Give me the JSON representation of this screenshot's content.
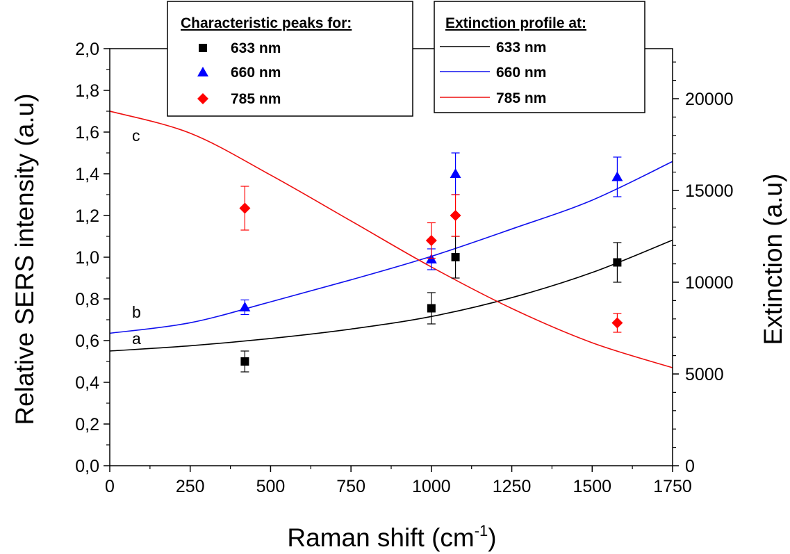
{
  "chart_data": {
    "type": "scatter",
    "xlabel_main": "Raman shift (cm",
    "xlabel_sup": "-1",
    "xlabel_close": ")",
    "ylabel": "Relative SERS intensity (a.u)",
    "y2label": "Extinction (a.u)",
    "xlim": [
      0,
      1750
    ],
    "ylim": [
      0,
      2.0
    ],
    "y2lim": [
      0,
      22727
    ],
    "x_ticks": [
      "0",
      "250",
      "500",
      "750",
      "1000",
      "1250",
      "1500",
      "1750"
    ],
    "y_ticks": [
      "0,0",
      "0,2",
      "0,4",
      "0,6",
      "0,8",
      "1,0",
      "1,2",
      "1,4",
      "1,6",
      "1,8",
      "2,0"
    ],
    "y2_ticks": [
      "0",
      "5000",
      "10000",
      "15000",
      "20000"
    ],
    "grid": false,
    "curve_letters": [
      "c",
      "b",
      "a"
    ],
    "legend_peaks": {
      "heading": "Characteristic peaks for:",
      "items": [
        "633 nm",
        "660 nm",
        "785 nm"
      ]
    },
    "legend_profile": {
      "heading": "Extinction profile at:",
      "items": [
        "633 nm",
        "660 nm",
        "785 nm"
      ]
    },
    "series": [
      {
        "name": "633 nm",
        "marker": "square",
        "color": "#000000",
        "x": [
          420,
          1000,
          1075,
          1578
        ],
        "y": [
          0.5,
          0.755,
          1.0,
          0.975
        ],
        "err": [
          0.05,
          0.075,
          0.1,
          0.095
        ]
      },
      {
        "name": "660 nm",
        "marker": "triangle",
        "color": "#0000ff",
        "x": [
          420,
          1000,
          1075,
          1578
        ],
        "y": [
          0.76,
          0.99,
          1.4,
          1.385
        ],
        "err": [
          0.035,
          0.05,
          0.1,
          0.095
        ]
      },
      {
        "name": "785 nm",
        "marker": "diamond",
        "color": "#ff0000",
        "x": [
          420,
          1000,
          1075,
          1578
        ],
        "y": [
          1.235,
          1.08,
          1.2,
          0.685
        ],
        "err": [
          0.105,
          0.085,
          0.1,
          0.045
        ]
      }
    ],
    "extinction_curves": [
      {
        "name": "633 nm",
        "color": "#000000",
        "x": [
          0,
          250,
          500,
          750,
          1000,
          1250,
          1500,
          1750
        ],
        "y": [
          6250,
          6535,
          6934,
          7447,
          8132,
          9159,
          10528,
          12297
        ]
      },
      {
        "name": "660 nm",
        "color": "#1010ee",
        "x": [
          0,
          250,
          500,
          750,
          1000,
          1250,
          1500,
          1750
        ],
        "y": [
          7220,
          7790,
          8930,
          10130,
          11410,
          12900,
          14470,
          16580
        ]
      },
      {
        "name": "785 nm",
        "color": "#ee1010",
        "x": [
          0,
          250,
          500,
          750,
          1000,
          1250,
          1500,
          1750
        ],
        "y": [
          19320,
          18120,
          15840,
          13340,
          10830,
          8570,
          6700,
          5340
        ]
      }
    ]
  }
}
